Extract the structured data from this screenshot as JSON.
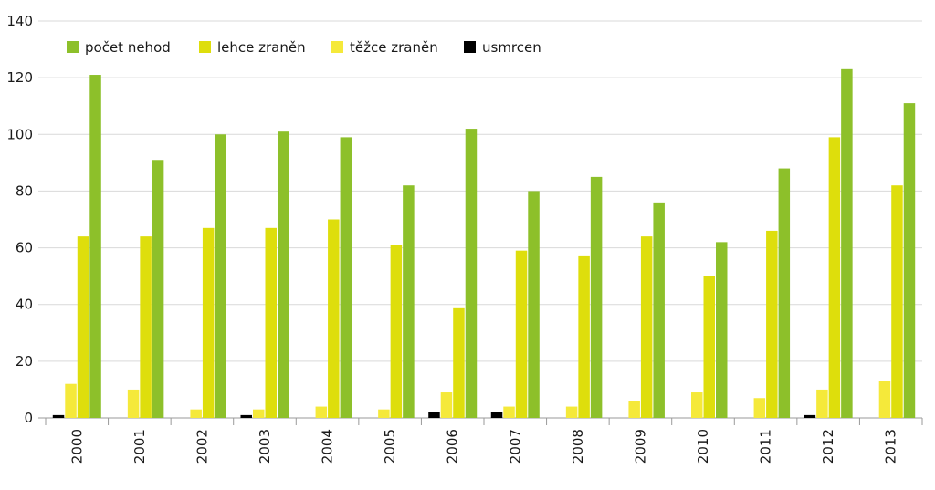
{
  "chart_data": {
    "type": "bar",
    "categories": [
      "2000",
      "2001",
      "2002",
      "2003",
      "2004",
      "2005",
      "2006",
      "2007",
      "2008",
      "2009",
      "2010",
      "2011",
      "2012",
      "2013"
    ],
    "series": [
      {
        "name": "usmrcen",
        "color": "#000000",
        "values": [
          1,
          0,
          0,
          1,
          0,
          0,
          2,
          2,
          0,
          0,
          0,
          0,
          1,
          0
        ]
      },
      {
        "name": "těžce zraněn",
        "color": "#f5e93a",
        "values": [
          12,
          10,
          3,
          3,
          4,
          3,
          9,
          4,
          4,
          6,
          9,
          7,
          10,
          13
        ]
      },
      {
        "name": "lehce zraněn",
        "color": "#dede0c",
        "values": [
          64,
          64,
          67,
          67,
          70,
          61,
          39,
          59,
          57,
          64,
          50,
          66,
          99,
          82
        ]
      },
      {
        "name": "počet nehod",
        "color": "#8dc02a",
        "values": [
          121,
          91,
          100,
          101,
          99,
          82,
          102,
          80,
          85,
          76,
          62,
          88,
          123,
          111
        ]
      }
    ],
    "legend_order": [
      "počet nehod",
      "lehce zraněn",
      "těžce zraněn",
      "usmrcen"
    ],
    "legend_placement": "top-left",
    "yticks": [
      "0",
      "20",
      "40",
      "60",
      "80",
      "100",
      "120",
      "140"
    ],
    "ylim": [
      0,
      140
    ],
    "grid": true,
    "title": "",
    "xlabel": "",
    "ylabel": ""
  }
}
